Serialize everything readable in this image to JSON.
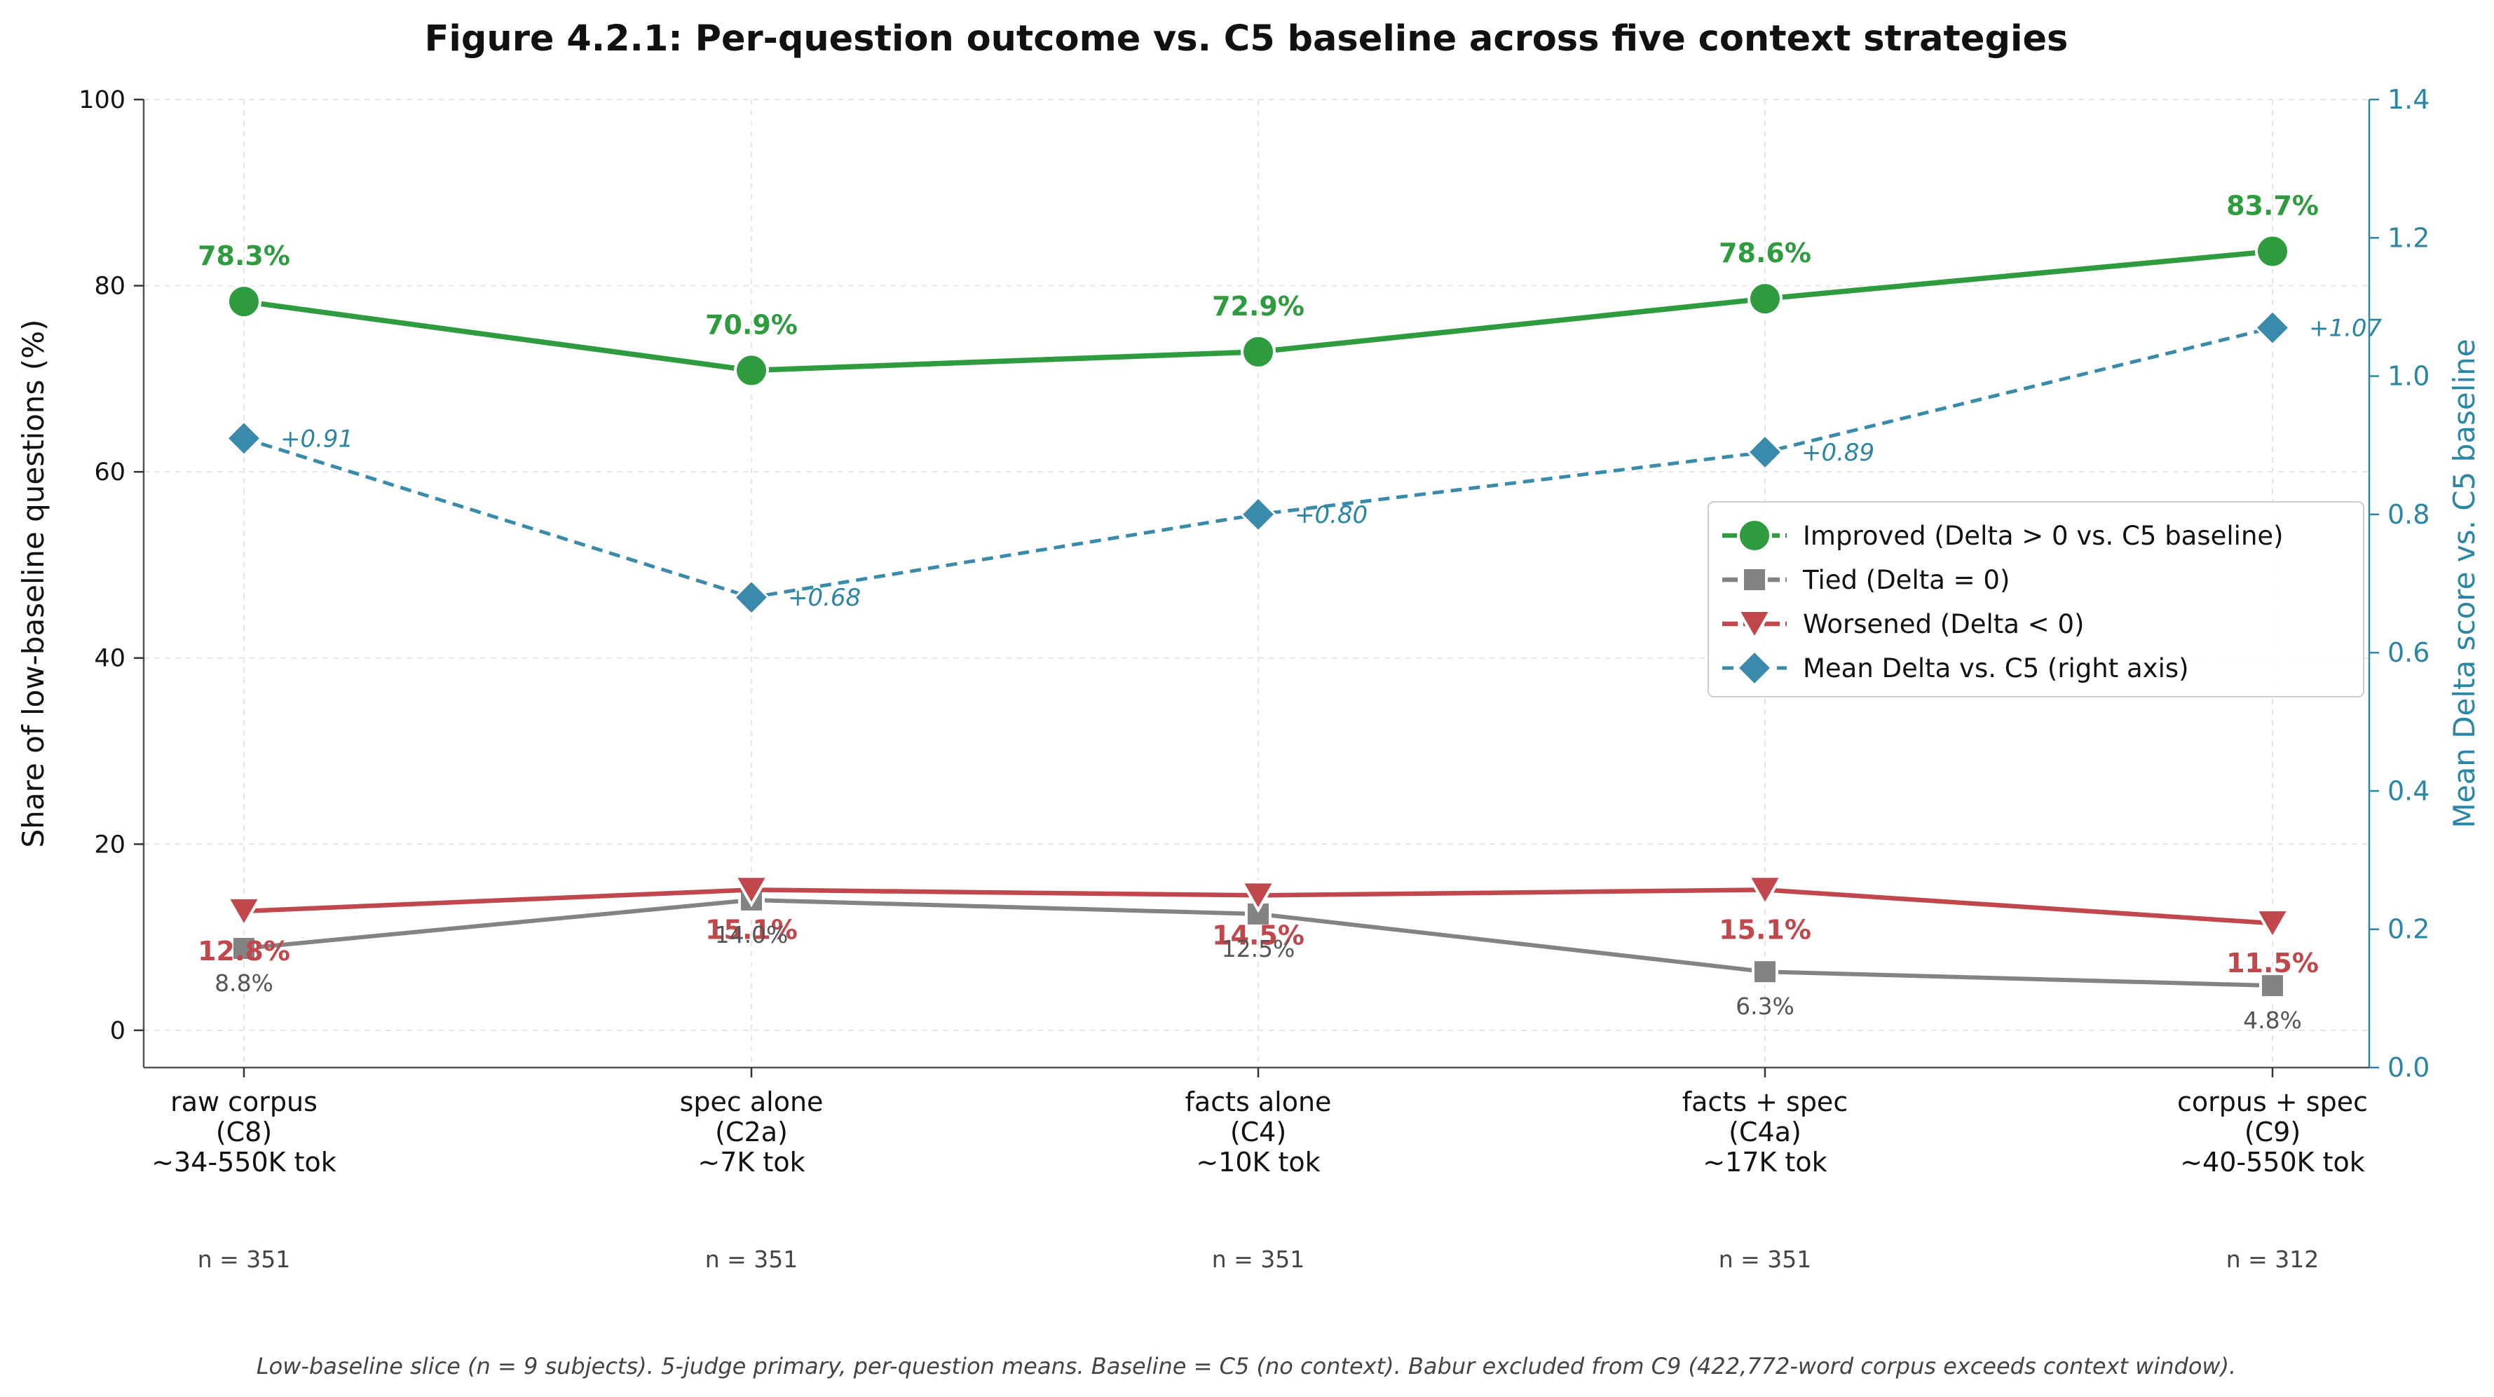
{
  "chart_data": {
    "type": "line",
    "title": "Figure 4.2.1: Per-question outcome vs. C5 baseline across five context strategies",
    "ylabel": "Share of low-baseline questions  (%)",
    "ylabel_right": "Mean Delta score vs. C5 baseline",
    "ylim": [
      -4,
      100
    ],
    "ylim_right": [
      0.0,
      1.4
    ],
    "yticks": [
      "0",
      "20",
      "40",
      "60",
      "80",
      "100"
    ],
    "yticks_right": [
      "0.0",
      "0.2",
      "0.4",
      "0.6",
      "0.8",
      "1.0",
      "1.2",
      "1.4"
    ],
    "categories": [
      [
        "raw corpus",
        "(C8)",
        "~34-550K tok"
      ],
      [
        "spec alone",
        "(C2a)",
        "~7K tok"
      ],
      [
        "facts alone",
        "(C4)",
        "~10K tok"
      ],
      [
        "facts + spec",
        "(C4a)",
        "~17K tok"
      ],
      [
        "corpus + spec",
        "(C9)",
        "~40-550K tok"
      ]
    ],
    "n_labels": [
      "n = 351",
      "n = 351",
      "n = 351",
      "n = 351",
      "n = 312"
    ],
    "series": [
      {
        "name": "Improved (Delta > 0 vs. C5 baseline)",
        "axis": "left",
        "values": [
          78.3,
          70.9,
          72.9,
          78.6,
          83.7
        ],
        "labels": [
          "78.3%",
          "70.9%",
          "72.9%",
          "78.6%",
          "83.7%"
        ],
        "color": "#2e9b3f",
        "marker": "circle"
      },
      {
        "name": "Tied (Delta = 0)",
        "axis": "left",
        "values": [
          8.8,
          14.0,
          12.5,
          6.3,
          4.8
        ],
        "labels": [
          "8.8%",
          "14.0%",
          "12.5%",
          "6.3%",
          "4.8%"
        ],
        "color": "#838383",
        "marker": "square"
      },
      {
        "name": "Worsened (Delta < 0)",
        "axis": "left",
        "values": [
          12.8,
          15.1,
          14.5,
          15.1,
          11.5
        ],
        "labels": [
          "12.8%",
          "15.1%",
          "14.5%",
          "15.1%",
          "11.5%"
        ],
        "color": "#c0474b",
        "marker": "triangle-down"
      },
      {
        "name": "Mean Delta vs. C5 (right axis)",
        "axis": "right",
        "values": [
          0.91,
          0.68,
          0.8,
          0.89,
          1.07
        ],
        "labels": [
          "+0.91",
          "+0.68",
          "+0.80",
          "+0.89",
          "+1.07"
        ],
        "color": "#3a8bab",
        "marker": "diamond"
      }
    ],
    "grid": true,
    "legend_position": "center-right",
    "footnote": "Low-baseline slice (n = 9 subjects). 5-judge primary, per-question means. Baseline = C5 (no context). Babur excluded from C9 (422,772-word corpus exceeds context window)."
  }
}
